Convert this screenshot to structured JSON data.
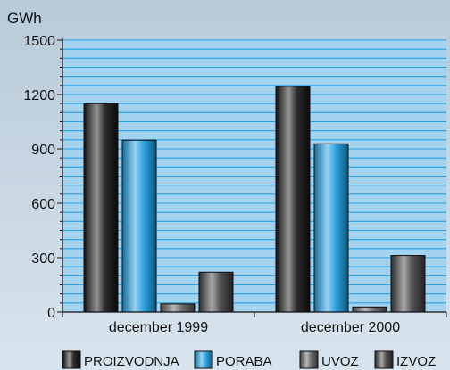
{
  "chart_data": {
    "type": "bar",
    "unit_label": "GWh",
    "categories": [
      "december 1999",
      "december 2000"
    ],
    "series": [
      {
        "name": "PROIZVODNJA",
        "values": [
          1150,
          1245
        ],
        "color": "#141414"
      },
      {
        "name": "PORABA",
        "values": [
          948,
          928
        ],
        "color": "#1a9ce0"
      },
      {
        "name": "UVOZ",
        "values": [
          45,
          28
        ],
        "color": "#5e5e5e"
      },
      {
        "name": "IZVOZ",
        "values": [
          220,
          312
        ],
        "color": "#3f3f3f"
      }
    ],
    "ylim": [
      0,
      1500
    ],
    "yticks": [
      "0",
      "300",
      "600",
      "900",
      "1200",
      "1500"
    ],
    "grid": true,
    "grid_color": "#29a3e6",
    "plot_background": "#a3d3ef",
    "legend_position": "bottom"
  }
}
